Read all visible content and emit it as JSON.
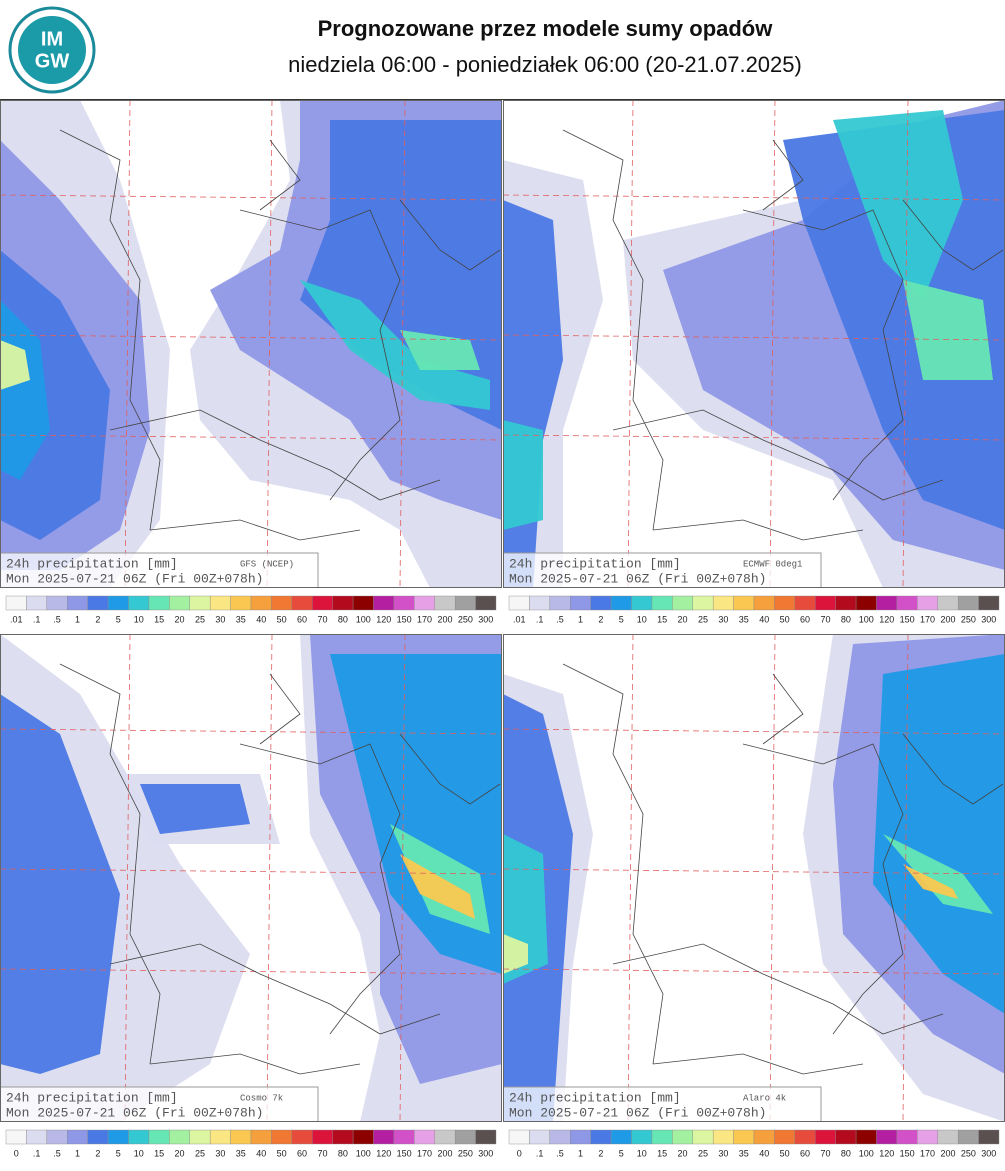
{
  "header": {
    "logo": [
      "IM",
      "GW"
    ],
    "title": "Prognozowane przez modele sumy opadów",
    "subtitle": "niedziela 06:00 - poniedziałek 06:00 (20-21.07.2025)"
  },
  "panels": [
    {
      "line1": "24h precipitation [mm]",
      "model": "GFS (NCEP)",
      "line2": "Mon 2025-07-21 06Z (Fri 00Z+078h)"
    },
    {
      "line1": "24h precipitation [mm]",
      "model": "ECMWF 0deg1",
      "line2": "Mon 2025-07-21 06Z (Fri 00Z+078h)"
    },
    {
      "line1": "24h precipitation [mm]",
      "model": "Cosmo 7k",
      "line2": "Mon 2025-07-21 06Z (Fri 00Z+078h)"
    },
    {
      "line1": "24h precipitation [mm]",
      "model": "Alaro 4k",
      "line2": "Mon 2025-07-21 06Z (Fri 00Z+078h)"
    }
  ],
  "scales": [
    {
      "labels": [
        ".01",
        ".1",
        ".5",
        "1",
        "2",
        "5",
        "10",
        "15",
        "20",
        "25",
        "30",
        "35",
        "40",
        "50",
        "60",
        "70",
        "80",
        "100",
        "120",
        "150",
        "170",
        "200",
        "250",
        "300"
      ]
    },
    {
      "labels": [
        "0",
        ".1",
        ".5",
        "1",
        "2",
        "5",
        "10",
        "15",
        "20",
        "25",
        "30",
        "35",
        "40",
        "50",
        "60",
        "70",
        "80",
        "100",
        "120",
        "150",
        "170",
        "200",
        "250",
        "300"
      ]
    }
  ],
  "scale_colors": [
    "#f6f6f6",
    "#dcdcf0",
    "#b9b9e8",
    "#8f98e6",
    "#4a78e4",
    "#1e9ae6",
    "#34c8d2",
    "#66e6b4",
    "#a2f0a0",
    "#dcf5a0",
    "#fae682",
    "#fac850",
    "#f5a03c",
    "#f07832",
    "#e64b3c",
    "#dc143c",
    "#b40a1e",
    "#8c0000",
    "#b41ea0",
    "#d250c8",
    "#e6a0e6",
    "#c8c8c8",
    "#a0a0a0",
    "#5a5050"
  ]
}
